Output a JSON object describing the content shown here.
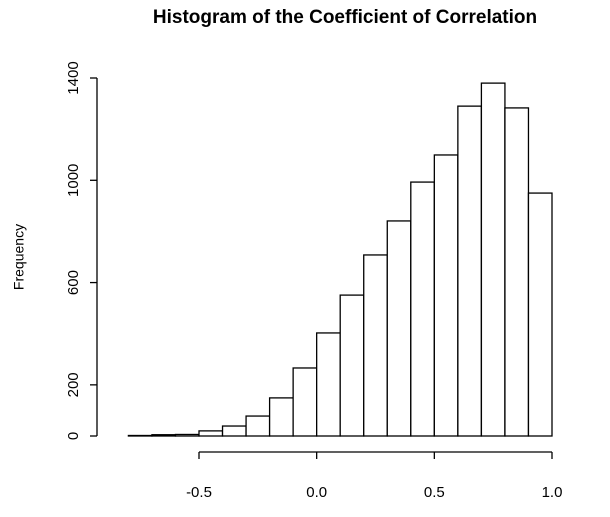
{
  "chart_data": {
    "type": "histogram",
    "title": "Histogram of the Coefficient of Correlation",
    "y_label": "Frequency",
    "bins": [
      -0.8,
      -0.7,
      -0.6,
      -0.5,
      -0.4,
      -0.3,
      -0.2,
      -0.1,
      0.0,
      0.1,
      0.2,
      0.3,
      0.4,
      0.5,
      0.6,
      0.7,
      0.8,
      0.9,
      1.0
    ],
    "values": [
      2,
      5,
      6,
      20,
      39,
      78,
      149,
      266,
      403,
      551,
      708,
      841,
      993,
      1099,
      1290,
      1380,
      1283,
      950
    ],
    "color": "#ffffff",
    "xlim": [
      -0.8,
      1.0
    ],
    "xticks": [
      -0.5,
      {
        "value": 0,
        "label": "0.0"
      },
      0.5,
      {
        "value": 1,
        "label": "1.0"
      }
    ],
    "ylim": [
      0,
      1400
    ],
    "yticks": [
      0,
      200,
      600,
      1000,
      1400
    ]
  }
}
